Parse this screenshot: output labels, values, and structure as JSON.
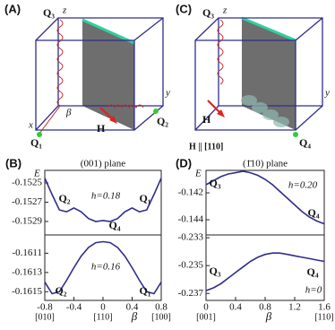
{
  "panels": {
    "a": "(A)",
    "b": "(B)",
    "c": "(C)",
    "d": "(D)"
  },
  "diagram_a": {
    "q3": "Q₃",
    "z": "z",
    "x": "x",
    "y": "y",
    "beta": "β",
    "q1": "Q₁",
    "q2": "Q₂",
    "h": "H"
  },
  "diagram_c": {
    "q3": "Q₃",
    "z": "z",
    "y": "y",
    "h": "H",
    "q4": "Q₄",
    "field": "H || [110]"
  },
  "chart_data": [
    {
      "type": "line",
      "title": "(001) plane",
      "y_label": "E",
      "x": [
        -0.8,
        -0.7,
        -0.6,
        -0.5,
        -0.4,
        -0.3,
        -0.2,
        -0.1,
        0,
        0.1,
        0.2,
        0.3,
        0.4,
        0.5,
        0.6,
        0.7,
        0.8
      ],
      "xlim": [
        -0.8,
        0.8
      ],
      "ylim": [
        -0.15304,
        -0.15237
      ],
      "yticks": [
        -0.1525,
        -0.1527,
        -0.1529
      ],
      "series": [
        {
          "color": "#2e2e8c",
          "values": [
            -0.15245,
            -0.15262,
            -0.15278,
            -0.1528,
            -0.15276,
            -0.1528,
            -0.15287,
            -0.1529,
            -0.15289,
            -0.1529,
            -0.15287,
            -0.1528,
            -0.15276,
            -0.1528,
            -0.15278,
            -0.15262,
            -0.15245
          ]
        }
      ],
      "annotations": [
        "Q₂",
        "h=0.18",
        "Q₁",
        "Q₄"
      ]
    },
    {
      "type": "line",
      "x_label": "β",
      "x": [
        -0.8,
        -0.7,
        -0.6,
        -0.5,
        -0.4,
        -0.3,
        -0.2,
        -0.1,
        0,
        0.1,
        0.2,
        0.3,
        0.4,
        0.5,
        0.6,
        0.7,
        0.8
      ],
      "xlim": [
        -0.8,
        0.8
      ],
      "xticks": [
        -0.8,
        -0.4,
        0,
        0.4,
        0.8
      ],
      "xtick_notes": [
        {
          "value": -0.8,
          "label": "[010]"
        },
        {
          "value": 0,
          "label": "[110]"
        },
        {
          "value": 0.8,
          "label": "[100]"
        }
      ],
      "ylim": [
        -0.16159,
        -0.16091
      ],
      "yticks": [
        -0.1611,
        -0.1613,
        -0.1615
      ],
      "series": [
        {
          "color": "#2e2e8c",
          "values": [
            -0.1614,
            -0.16152,
            -0.1615,
            -0.16138,
            -0.16125,
            -0.16113,
            -0.16104,
            -0.16099,
            -0.16098,
            -0.16099,
            -0.16104,
            -0.16113,
            -0.16125,
            -0.16138,
            -0.1615,
            -0.16152,
            -0.1614
          ]
        }
      ],
      "annotations": [
        "h=0.16",
        "Q₂",
        "Q₁"
      ]
    },
    {
      "type": "line",
      "title": "(1̄10) plane",
      "y_label": "E",
      "x": [
        0,
        0.1,
        0.2,
        0.3,
        0.4,
        0.5,
        0.6,
        0.7,
        0.8,
        0.9,
        1.0,
        1.1,
        1.2,
        1.3,
        1.4,
        1.5,
        1.6
      ],
      "xlim": [
        0,
        1.6
      ],
      "ylim": [
        -0.14513,
        -0.14033
      ],
      "yticks": [
        -0.142,
        -0.144
      ],
      "series": [
        {
          "color": "#2e2e8c",
          "values": [
            -0.1414,
            -0.1411,
            -0.1408,
            -0.1406,
            -0.1405,
            -0.1404,
            -0.1405,
            -0.1407,
            -0.141,
            -0.1414,
            -0.1419,
            -0.1424,
            -0.1429,
            -0.1434,
            -0.1438,
            -0.1441,
            -0.1443
          ]
        }
      ],
      "annotations": [
        "Q₃",
        "h=0.20",
        "Q₄"
      ]
    },
    {
      "type": "line",
      "x_label": "β",
      "x": [
        0,
        0.1,
        0.2,
        0.3,
        0.4,
        0.5,
        0.6,
        0.7,
        0.8,
        0.9,
        1.0,
        1.1,
        1.2,
        1.3,
        1.4,
        1.5,
        1.6
      ],
      "xlim": [
        0,
        1.6
      ],
      "xticks": [
        0,
        0.4,
        0.8,
        1.2,
        1.6
      ],
      "xtick_notes": [
        {
          "value": 0,
          "label": "[001]"
        },
        {
          "value": 1.6,
          "label": "[110]"
        }
      ],
      "ylim": [
        -0.2375,
        -0.2328
      ],
      "yticks": [
        -0.233,
        -0.235,
        -0.237
      ],
      "series": [
        {
          "color": "#2e2e8c",
          "values": [
            -0.2368,
            -0.2366,
            -0.2363,
            -0.2359,
            -0.2355,
            -0.2351,
            -0.2347,
            -0.2344,
            -0.2342,
            -0.2341,
            -0.2341,
            -0.2342,
            -0.2343,
            -0.2344,
            -0.2345,
            -0.2346,
            -0.2347
          ]
        }
      ],
      "annotations": [
        "Q₃",
        "Q₄",
        "h=0"
      ]
    }
  ]
}
